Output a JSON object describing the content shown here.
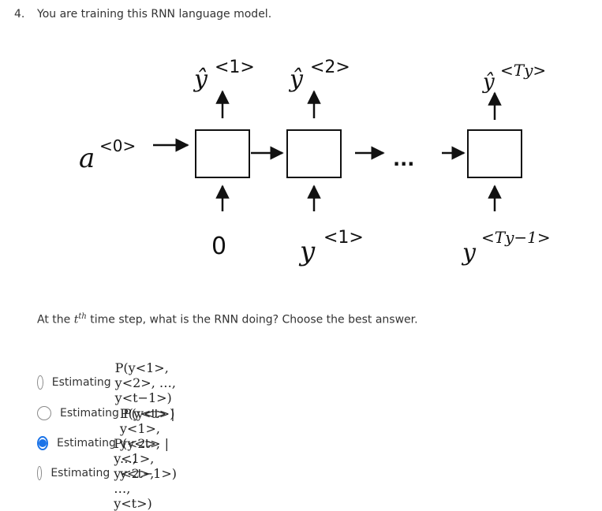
{
  "question": {
    "number": "4.",
    "title": "You are training this RNN language model."
  },
  "diagram": {
    "a0_label": "a",
    "a0_sup": "<0>",
    "outputs": [
      {
        "base": "ŷ",
        "sup": "<1>"
      },
      {
        "base": "ŷ",
        "sup": "<2>"
      },
      {
        "base": "ŷ",
        "sup": "<Ty>"
      }
    ],
    "inputs": [
      {
        "base": "0",
        "sup": ""
      },
      {
        "base": "y",
        "sup": "<1>"
      },
      {
        "base": "y",
        "sup": "<Ty−1>"
      }
    ],
    "ellipsis": "..."
  },
  "prompt": {
    "before": "At the ",
    "var": "t",
    "var_sup": "th",
    "after": " time step, what is the RNN doing? Choose the best answer."
  },
  "options": [
    {
      "label": "Estimating",
      "math": "P(y<1>, y<2>, …, y<t−1>)",
      "selected": false
    },
    {
      "label": "Estimating",
      "math": "P(y<t>)",
      "selected": false
    },
    {
      "label": "Estimating",
      "math": "P(y<t> | y<1>, y<2>, …, y<t−1>)",
      "selected": true
    },
    {
      "label": "Estimating",
      "math": "P(y<t> | y<1>, y<2>, …, y<t>)",
      "selected": false
    }
  ],
  "colors": {
    "accent": "#1a73e8",
    "text": "#333333"
  }
}
